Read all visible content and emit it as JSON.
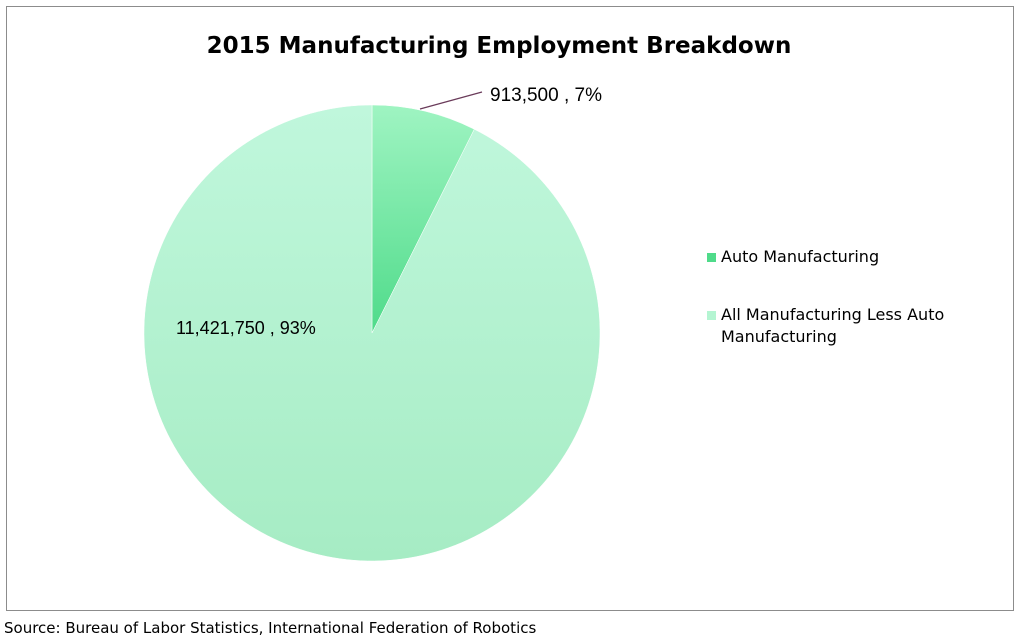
{
  "chart_data": {
    "type": "pie",
    "title": "2015 Manufacturing Employment Breakdown",
    "slices": [
      {
        "name": "Auto Manufacturing",
        "value": 913500,
        "percent": 7,
        "label": "913,500 , 7%",
        "color": "#8ef0b2"
      },
      {
        "name": "All Manufacturing Less Auto Manufacturing",
        "value": 11421750,
        "percent": 93,
        "label": "11,421,750 , 93%",
        "color": "#b4f5d2"
      }
    ],
    "legend": {
      "position": "right",
      "entries": [
        {
          "lines": [
            "Auto Manufacturing"
          ],
          "color": "#4fdb8a"
        },
        {
          "lines": [
            "All Manufacturing Less Auto",
            "Manufacturing"
          ],
          "color": "#b4f5d2"
        }
      ]
    }
  },
  "source": "Source: Bureau of Labor Statistics, International Federation of Robotics"
}
